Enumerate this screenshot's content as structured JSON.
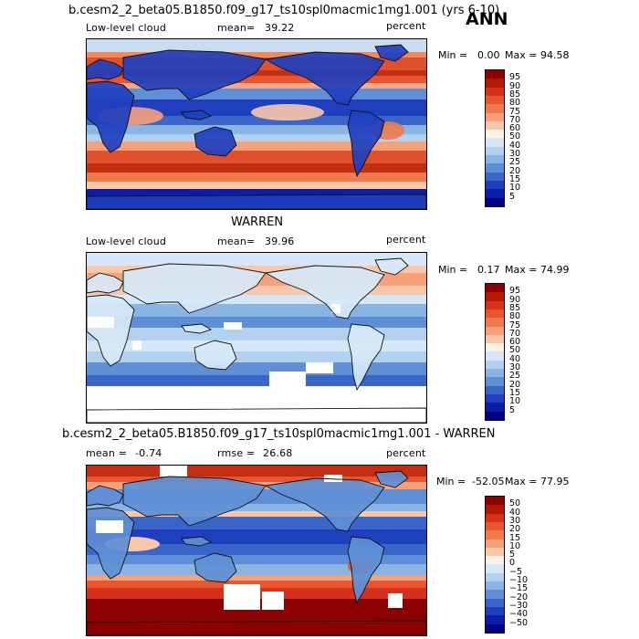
{
  "season": "ANN",
  "panels": [
    {
      "id": "model",
      "title": "b.cesm2_2_beta05.B1850.f09_g17_ts10spl0macmic1mg1.001 (yrs 6-10)",
      "field": "Low-level cloud",
      "mean_label": "mean=",
      "mean": "39.22",
      "units": "percent",
      "min_label": "Min =",
      "min": "0.00",
      "max_label": "Max =",
      "max": "94.58",
      "colorbar": {
        "ticks": [
          "95",
          "90",
          "85",
          "80",
          "75",
          "70",
          "60",
          "50",
          "40",
          "30",
          "25",
          "20",
          "15",
          "10",
          "5"
        ],
        "colors": [
          "#8b0000",
          "#b51800",
          "#d7301f",
          "#e8552f",
          "#f07a4a",
          "#f6a07a",
          "#fbc7ab",
          "#fff0e4",
          "#d6e8f7",
          "#b2d1ef",
          "#8ab4e4",
          "#5f8fd6",
          "#3a66c9",
          "#1f3fbf",
          "#0a1fa8",
          "#000080"
        ]
      },
      "chart_data": {
        "type": "heatmap",
        "title": "b.cesm2_2_beta05.B1850.f09_g17_ts10spl0macmic1mg1.001 (yrs 6-10)",
        "variable": "Low-level cloud",
        "units": "percent",
        "mean": 39.22,
        "min": 0.0,
        "max": 94.58,
        "colorbar_levels": [
          5,
          10,
          15,
          20,
          25,
          30,
          40,
          50,
          60,
          70,
          75,
          80,
          85,
          90,
          95
        ]
      }
    },
    {
      "id": "obs",
      "title": "WARREN",
      "field": "Low-level cloud",
      "mean_label": "mean=",
      "mean": "39.96",
      "units": "percent",
      "min_label": "Min =",
      "min": "0.17",
      "max_label": "Max =",
      "max": "74.99",
      "colorbar": {
        "ticks": [
          "95",
          "90",
          "85",
          "80",
          "75",
          "70",
          "60",
          "50",
          "40",
          "30",
          "25",
          "20",
          "15",
          "10",
          "5"
        ],
        "colors": [
          "#8b0000",
          "#b51800",
          "#d7301f",
          "#e8552f",
          "#f07a4a",
          "#f6a07a",
          "#fbc7ab",
          "#fff0e4",
          "#d6e8f7",
          "#b2d1ef",
          "#8ab4e4",
          "#5f8fd6",
          "#3a66c9",
          "#1f3fbf",
          "#0a1fa8",
          "#000080"
        ]
      },
      "chart_data": {
        "type": "heatmap",
        "title": "WARREN",
        "variable": "Low-level cloud",
        "units": "percent",
        "mean": 39.96,
        "min": 0.17,
        "max": 74.99,
        "colorbar_levels": [
          5,
          10,
          15,
          20,
          25,
          30,
          40,
          50,
          60,
          70,
          75,
          80,
          85,
          90,
          95
        ]
      }
    },
    {
      "id": "diff",
      "title": "b.cesm2_2_beta05.B1850.f09_g17_ts10spl0macmic1mg1.001 - WARREN",
      "mean_label": "mean =",
      "mean": "-0.74",
      "rmse_label": "rmse =",
      "rmse": "26.68",
      "units": "percent",
      "min_label": "Min =",
      "min": "-52.05",
      "max_label": "Max =",
      "max": "77.95",
      "colorbar": {
        "ticks": [
          "50",
          "40",
          "30",
          "20",
          "15",
          "10",
          "5",
          "0",
          "−5",
          "−10",
          "−15",
          "−20",
          "−30",
          "−40",
          "−50"
        ],
        "colors": [
          "#8b0000",
          "#b51800",
          "#d7301f",
          "#e8552f",
          "#f07a4a",
          "#f6a07a",
          "#fbc7ab",
          "#fff0e4",
          "#d6e8f7",
          "#b2d1ef",
          "#8ab4e4",
          "#5f8fd6",
          "#3a66c9",
          "#1f3fbf",
          "#0a1fa8",
          "#000080"
        ]
      },
      "chart_data": {
        "type": "heatmap",
        "title": "b.cesm2_2_beta05.B1850.f09_g17_ts10spl0macmic1mg1.001 - WARREN",
        "units": "percent",
        "mean": -0.74,
        "rmse": 26.68,
        "min": -52.05,
        "max": 77.95,
        "colorbar_levels": [
          -50,
          -40,
          -30,
          -20,
          -15,
          -10,
          -5,
          0,
          5,
          10,
          15,
          20,
          30,
          40,
          50
        ]
      }
    }
  ]
}
